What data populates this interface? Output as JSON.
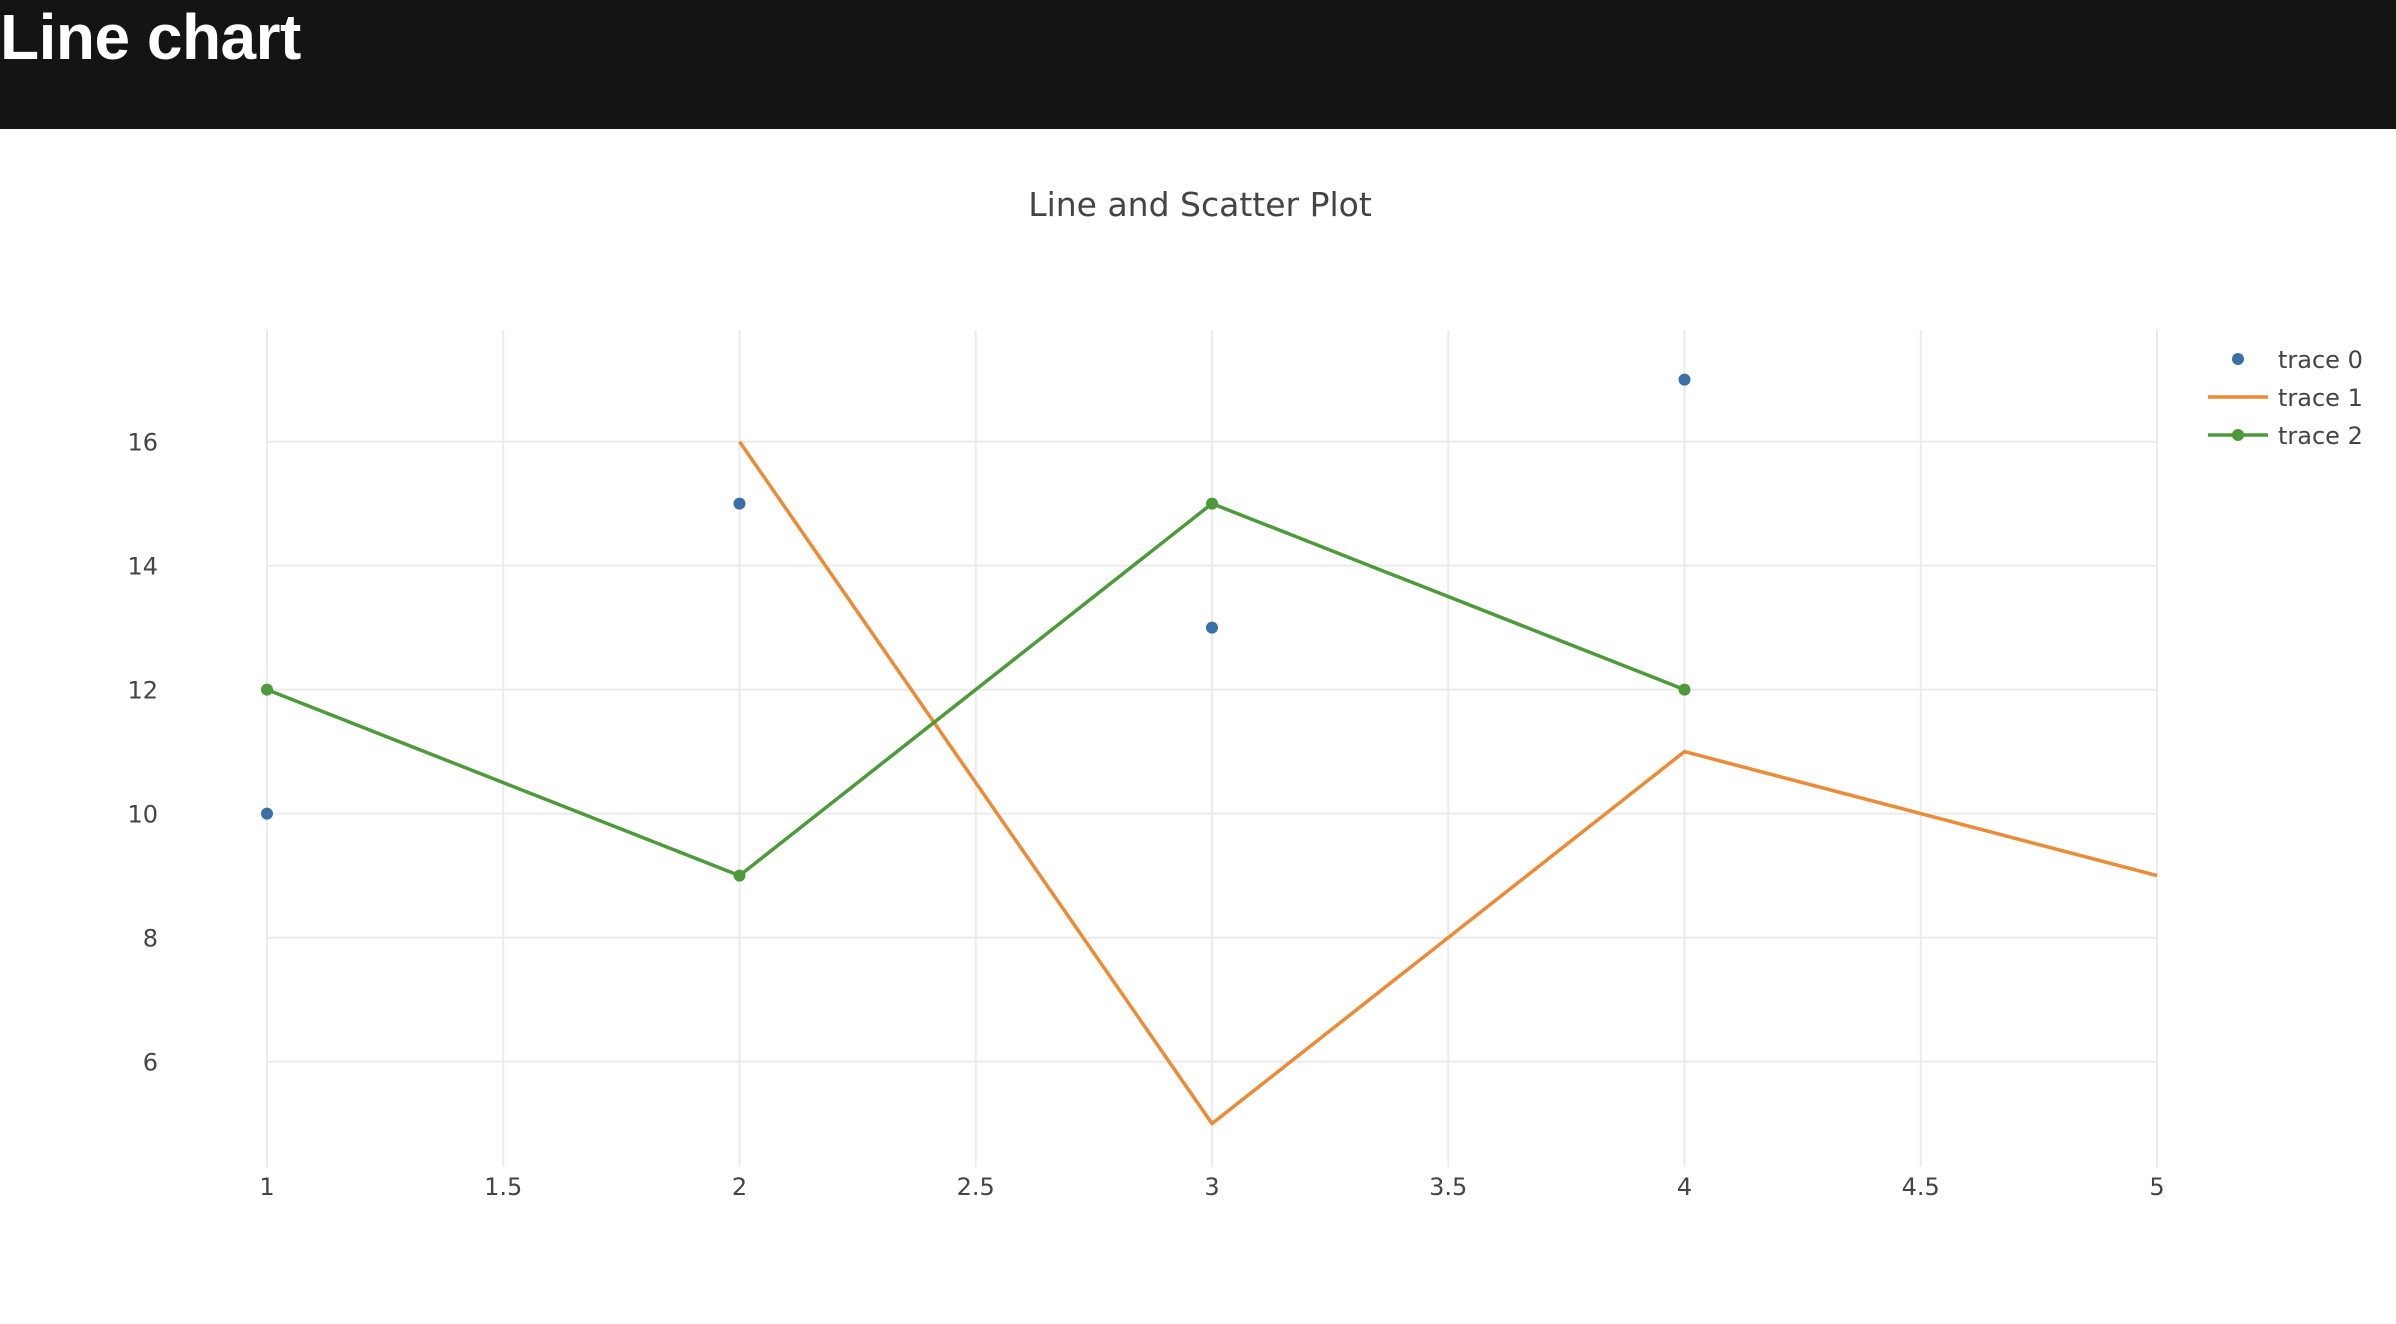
{
  "header": {
    "title": "Line chart"
  },
  "chart_data": {
    "type": "line",
    "title": "Line and Scatter Plot",
    "xlabel": "",
    "ylabel": "",
    "xlim": [
      1,
      5
    ],
    "ylim": [
      4.3,
      17.8
    ],
    "x_ticks": [
      1,
      1.5,
      2,
      2.5,
      3,
      3.5,
      4,
      4.5,
      5
    ],
    "x_tick_labels": [
      "1",
      "1.5",
      "2",
      "2.5",
      "3",
      "3.5",
      "4",
      "4.5",
      "5"
    ],
    "y_ticks": [
      6,
      8,
      10,
      12,
      14,
      16
    ],
    "y_tick_labels": [
      "6",
      "8",
      "10",
      "12",
      "14",
      "16"
    ],
    "grid": true,
    "legend_position": "top-right",
    "series": [
      {
        "name": "trace 0",
        "mode": "markers",
        "color": "#3b6fa7",
        "x": [
          1,
          2,
          3,
          4
        ],
        "y": [
          10,
          15,
          13,
          17
        ]
      },
      {
        "name": "trace 1",
        "mode": "lines",
        "color": "#ed8a35",
        "x": [
          2,
          3,
          4,
          5
        ],
        "y": [
          16,
          5,
          11,
          9
        ]
      },
      {
        "name": "trace 2",
        "mode": "lines+markers",
        "color": "#4d9a3a",
        "x": [
          1,
          2,
          3,
          4
        ],
        "y": [
          12,
          9,
          15,
          12
        ]
      }
    ]
  }
}
